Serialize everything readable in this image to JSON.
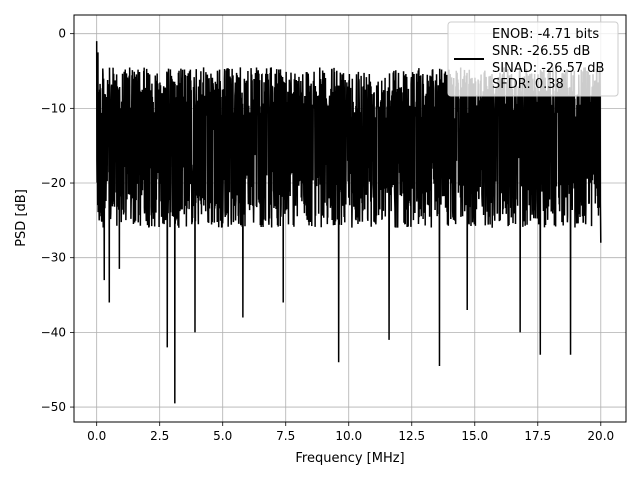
{
  "chart_data": {
    "type": "line",
    "title": "",
    "xlabel": "Frequency [MHz]",
    "ylabel": "PSD [dB]",
    "xlim": [
      -0.9,
      21.0
    ],
    "ylim": [
      -52,
      2.5
    ],
    "xticks": [
      0.0,
      2.5,
      5.0,
      7.5,
      10.0,
      12.5,
      15.0,
      17.5,
      20.0
    ],
    "xtick_labels": [
      "0.0",
      "2.5",
      "5.0",
      "7.5",
      "10.0",
      "12.5",
      "15.0",
      "17.5",
      "20.0"
    ],
    "yticks": [
      0,
      -10,
      -20,
      -30,
      -40,
      -50
    ],
    "ytick_labels": [
      "0",
      "−10",
      "−20",
      "−30",
      "−40",
      "−50"
    ],
    "grid": true,
    "legend_position": "top-right",
    "series": [
      {
        "color": "#000000",
        "x_range": [
          0.0,
          20.0
        ],
        "x": [
          0.0,
          0.05,
          0.1,
          0.3,
          0.5,
          0.9,
          2.8,
          3.1,
          3.9,
          5.8,
          7.4,
          9.6,
          11.6,
          13.6,
          14.7,
          16.8,
          17.6,
          18.8,
          20.0
        ],
        "y": [
          -1.0,
          -2.5,
          -25.0,
          -33.0,
          -36.0,
          -31.5,
          -42.0,
          -49.5,
          -40.0,
          -38.0,
          -36.0,
          -44.0,
          -41.0,
          -44.5,
          -37.0,
          -40.0,
          -43.0,
          -43.0,
          -28.0
        ],
        "typical_upper_envelope_db": -4.5,
        "typical_lower_envelope_db": -26.0,
        "mean_level_db": -14.0
      }
    ],
    "legend": {
      "lines": [
        "ENOB: -4.71 bits",
        "SNR: -26.55 dB",
        "SINAD: -26.57 dB",
        "SFDR: 0.38"
      ],
      "line_color": "#000000"
    }
  }
}
